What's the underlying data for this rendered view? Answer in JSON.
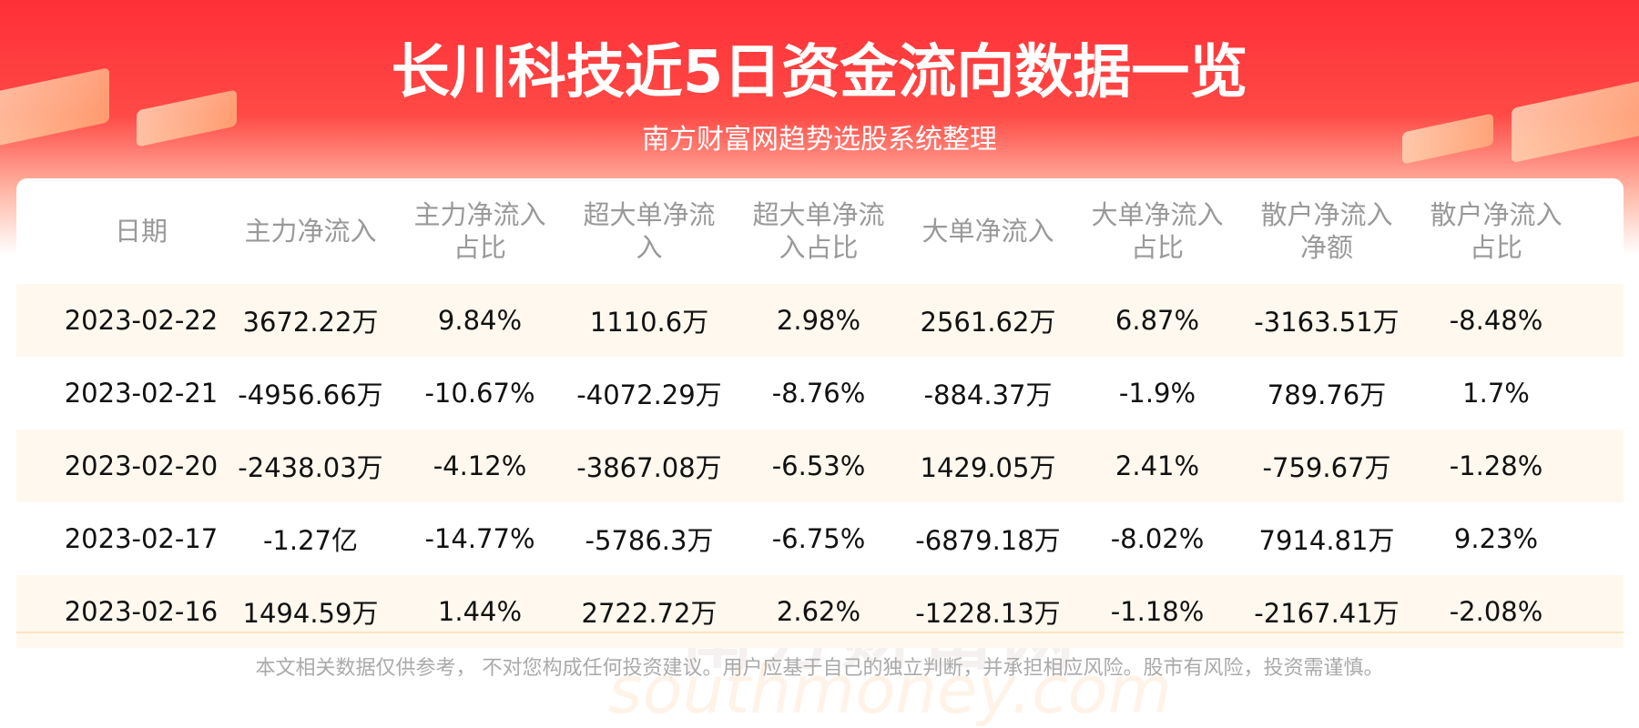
{
  "header": {
    "title": "长川科技近5日资金流向数据一览",
    "subtitle": "南方财富网趋势选股系统整理"
  },
  "table": {
    "columns": [
      "日期",
      "主力净流入",
      "主力净流入占比",
      "超大单净流入",
      "超大单净流入占比",
      "大单净流入",
      "大单净流入占比",
      "散户净流入净额",
      "散户净流入占比"
    ],
    "rows": [
      [
        "2023-02-22",
        "3672.22万",
        "9.84%",
        "1110.6万",
        "2.98%",
        "2561.62万",
        "6.87%",
        "-3163.51万",
        "-8.48%"
      ],
      [
        "2023-02-21",
        "-4956.66万",
        "-10.67%",
        "-4072.29万",
        "-8.76%",
        "-884.37万",
        "-1.9%",
        "789.76万",
        "1.7%"
      ],
      [
        "2023-02-20",
        "-2438.03万",
        "-4.12%",
        "-3867.08万",
        "-6.53%",
        "1429.05万",
        "2.41%",
        "-759.67万",
        "-1.28%"
      ],
      [
        "2023-02-17",
        "-1.27亿",
        "-14.77%",
        "-5786.3万",
        "-6.75%",
        "-6879.18万",
        "-8.02%",
        "7914.81万",
        "9.23%"
      ],
      [
        "2023-02-16",
        "1494.59万",
        "1.44%",
        "2722.72万",
        "2.62%",
        "-1228.13万",
        "-1.18%",
        "-2167.41万",
        "-2.08%"
      ]
    ]
  },
  "watermark": {
    "cn": "南方财富网",
    "en": "southmoney.com"
  },
  "footer": {
    "disclaimer": "本文相关数据仅供参考， 不对您构成任何投资建议。用户应基于自己的独立判断，并承担相应风险。股市有风险，投资需谨慎。"
  }
}
